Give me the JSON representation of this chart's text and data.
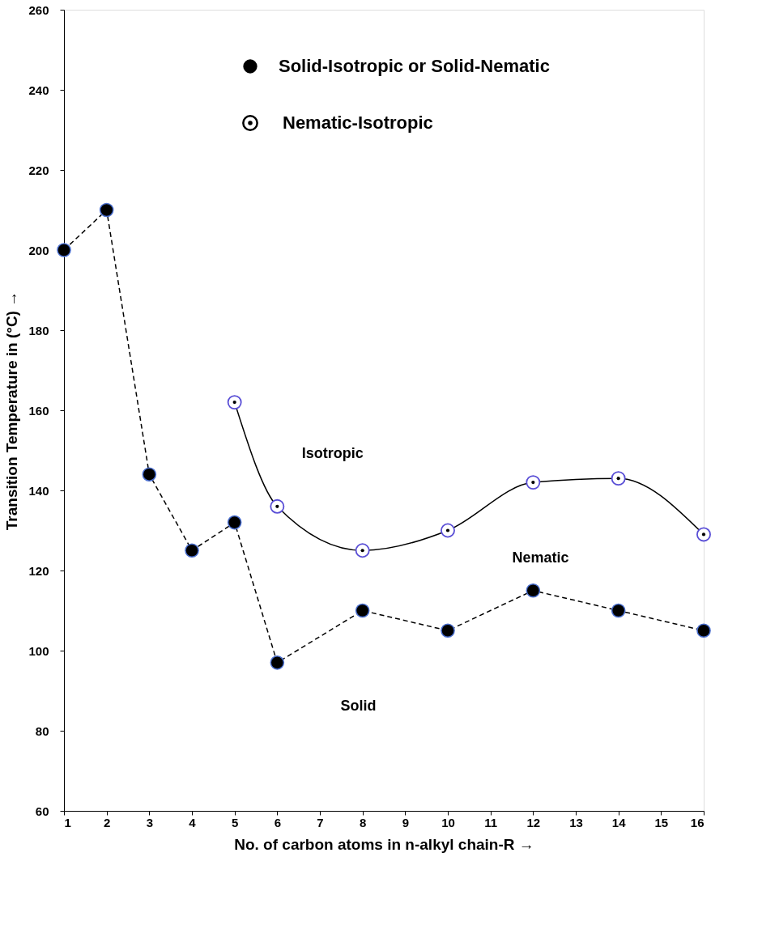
{
  "chart_data": {
    "type": "line",
    "xlabel": "No. of carbon atoms in n-alkyl chain-R  →",
    "ylabel": "Transition Temperature in  (°C)  →",
    "xlim": [
      1,
      16
    ],
    "xticks": [
      1,
      2,
      3,
      4,
      5,
      6,
      7,
      8,
      9,
      10,
      11,
      12,
      13,
      14,
      15,
      16
    ],
    "ylim": [
      60,
      260
    ],
    "yticks": [
      60,
      80,
      100,
      120,
      140,
      160,
      180,
      200,
      220,
      240,
      260
    ],
    "grid": false,
    "legend": "top",
    "marker": "circle",
    "series": [
      {
        "name": "Solid-Isotropic or Solid-Nematic",
        "color": "#000000",
        "line_style": "dashed",
        "x": [
          1,
          2,
          3,
          4,
          5,
          6,
          8,
          10,
          12,
          14,
          16
        ],
        "values": [
          200,
          210,
          144,
          125,
          132,
          97,
          110,
          105,
          115,
          110,
          105
        ]
      },
      {
        "name": "Nematic-Isotropic",
        "color": "#000000",
        "line_style": "solid",
        "x": [
          5,
          6,
          8,
          10,
          12,
          14,
          16
        ],
        "values": [
          162,
          136,
          125,
          130,
          142,
          143,
          129
        ]
      }
    ],
    "annotations": [
      "Isotropic",
      "Nematic",
      "Solid"
    ]
  }
}
